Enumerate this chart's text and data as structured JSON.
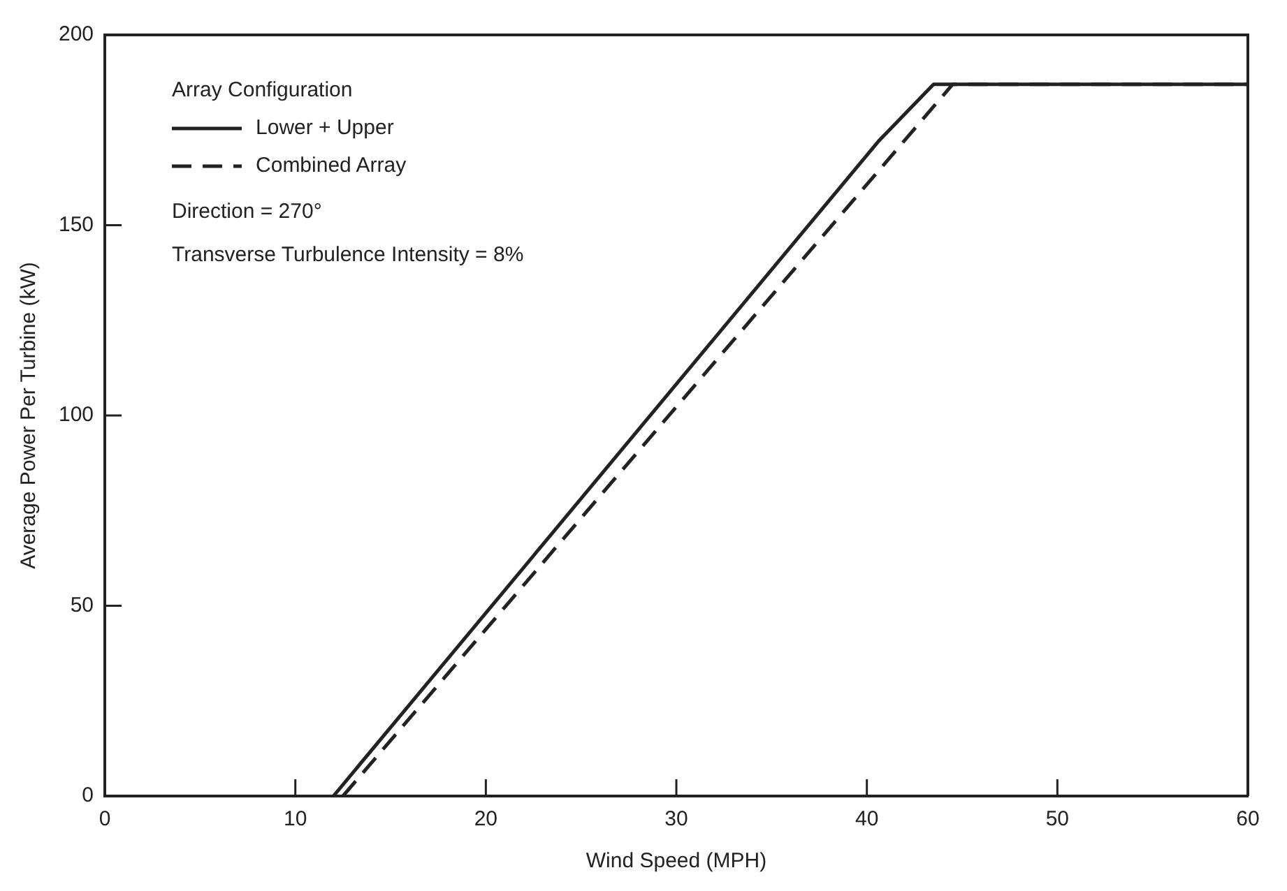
{
  "chart_data": {
    "type": "line",
    "xlabel": "Wind Speed (MPH)",
    "ylabel": "Average Power Per Turbine (kW)",
    "legend_title": "Array Configuration",
    "legend": "top left",
    "grid": false,
    "marker": "none",
    "xlim": [
      0,
      60
    ],
    "xticks": [
      0,
      10,
      20,
      30,
      40,
      50,
      60
    ],
    "ylim": [
      0,
      200
    ],
    "yticks": [
      0,
      50,
      100,
      150,
      200
    ],
    "series": [
      {
        "name": "Lower + Upper",
        "color": "#222222",
        "line_style": "solid",
        "x": [
          12,
          40.6,
          43.5,
          60
        ],
        "values": [
          0,
          172,
          187,
          187
        ]
      },
      {
        "name": "Combined Array",
        "color": "#222222",
        "line_style": "dashed",
        "x": [
          12.5,
          44.5,
          60
        ],
        "values": [
          0,
          187,
          187
        ]
      }
    ],
    "annotations": [
      "Direction = 270°",
      "Transverse Turbulence Intensity = 8%"
    ]
  }
}
